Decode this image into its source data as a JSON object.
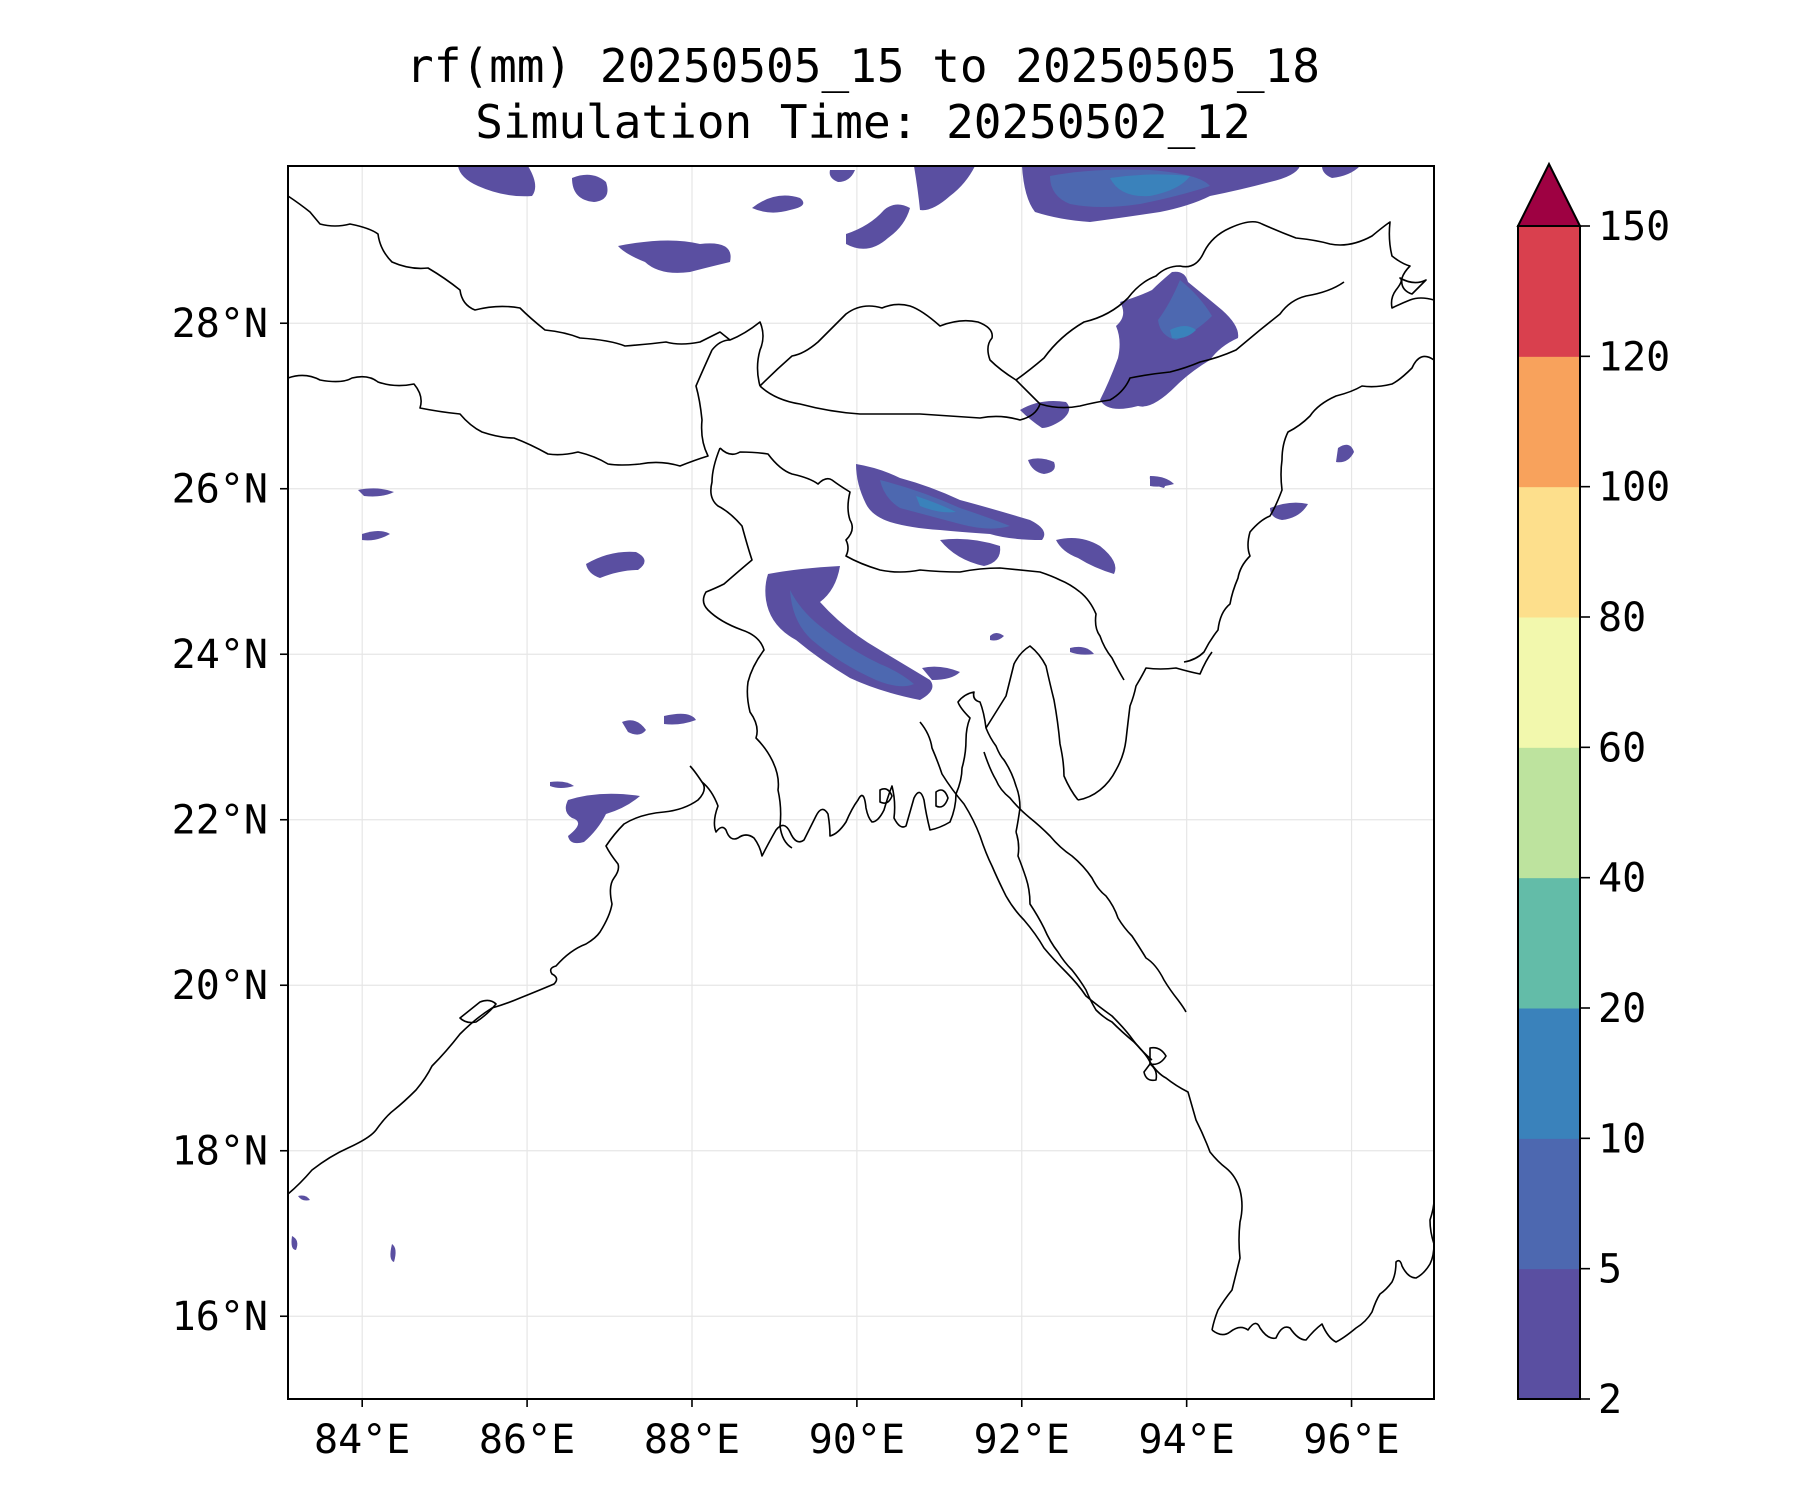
{
  "title": {
    "line1": "rf(mm) 20250505_15 to 20250505_18",
    "line2": "Simulation Time: 20250502_12"
  },
  "map": {
    "lon_range": [
      83.1,
      97.0
    ],
    "lat_range": [
      15.0,
      29.9
    ],
    "lon_ticks": [
      84,
      86,
      88,
      90,
      92,
      94,
      96
    ],
    "lat_ticks": [
      16,
      18,
      20,
      22,
      24,
      26,
      28
    ],
    "lon_tick_labels": [
      "84°E",
      "86°E",
      "88°E",
      "90°E",
      "92°E",
      "94°E",
      "96°E"
    ],
    "lat_tick_labels": [
      "16°N",
      "18°N",
      "20°N",
      "22°N",
      "24°N",
      "26°N",
      "28°N"
    ],
    "grid": true
  },
  "colorbar": {
    "levels": [
      2,
      5,
      10,
      20,
      40,
      60,
      80,
      100,
      120,
      150
    ],
    "labels": [
      "2",
      "5",
      "10",
      "20",
      "40",
      "60",
      "80",
      "100",
      "120",
      "150"
    ],
    "colors": [
      "#5a4fa1",
      "#4d68b0",
      "#3a82bb",
      "#63bca8",
      "#bde39e",
      "#f2f8ad",
      "#fddf8c",
      "#f8a25c",
      "#d9404e"
    ],
    "extend_color": "#9e0142",
    "extend": "max"
  }
}
